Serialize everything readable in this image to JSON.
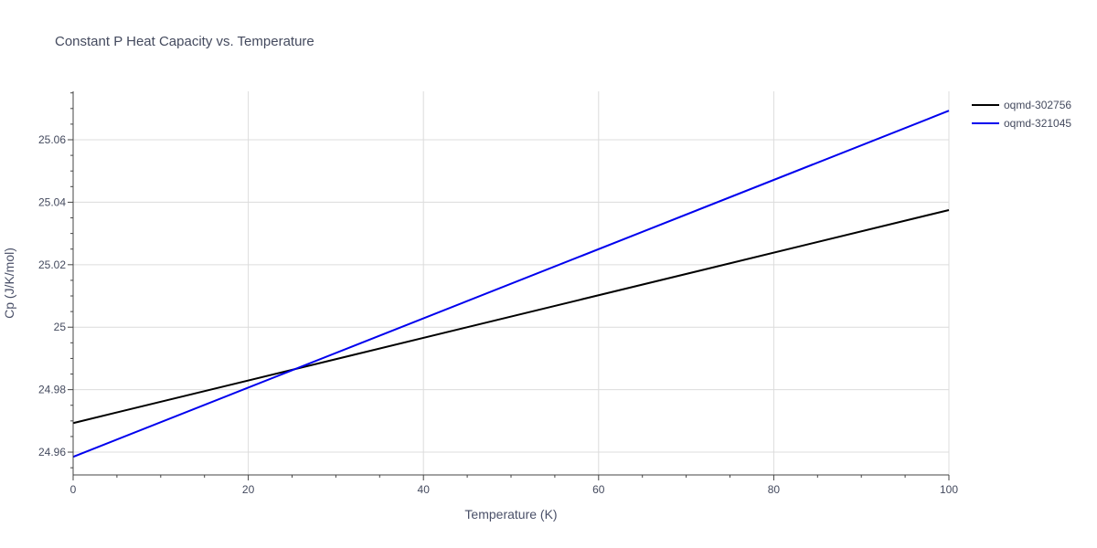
{
  "chart_data": {
    "type": "line",
    "title": "Constant P Heat Capacity vs. Temperature",
    "xlabel": "Temperature (K)",
    "ylabel": "Cp (J/K/mol)",
    "xlim": [
      0,
      100
    ],
    "ylim": [
      24.9527,
      25.0755
    ],
    "x_ticks": [
      0,
      20,
      40,
      60,
      80,
      100
    ],
    "x_tick_labels": [
      "0",
      "20",
      "40",
      "60",
      "80",
      "100"
    ],
    "x_minor_step": 5,
    "y_ticks": [
      24.96,
      24.98,
      25.0,
      25.02,
      25.04,
      25.06
    ],
    "y_tick_labels": [
      "24.96",
      "24.98",
      "25",
      "25.02",
      "25.04",
      "25.06"
    ],
    "y_minor_step": 0.005,
    "grid": true,
    "legend": "top-right",
    "series": [
      {
        "name": "oqmd-302756",
        "color": "#000000",
        "x": [
          0,
          100
        ],
        "y": [
          24.9693,
          25.0375
        ]
      },
      {
        "name": "oqmd-321045",
        "color": "#0000ee",
        "x": [
          0,
          100
        ],
        "y": [
          24.9585,
          25.0693
        ]
      }
    ]
  }
}
